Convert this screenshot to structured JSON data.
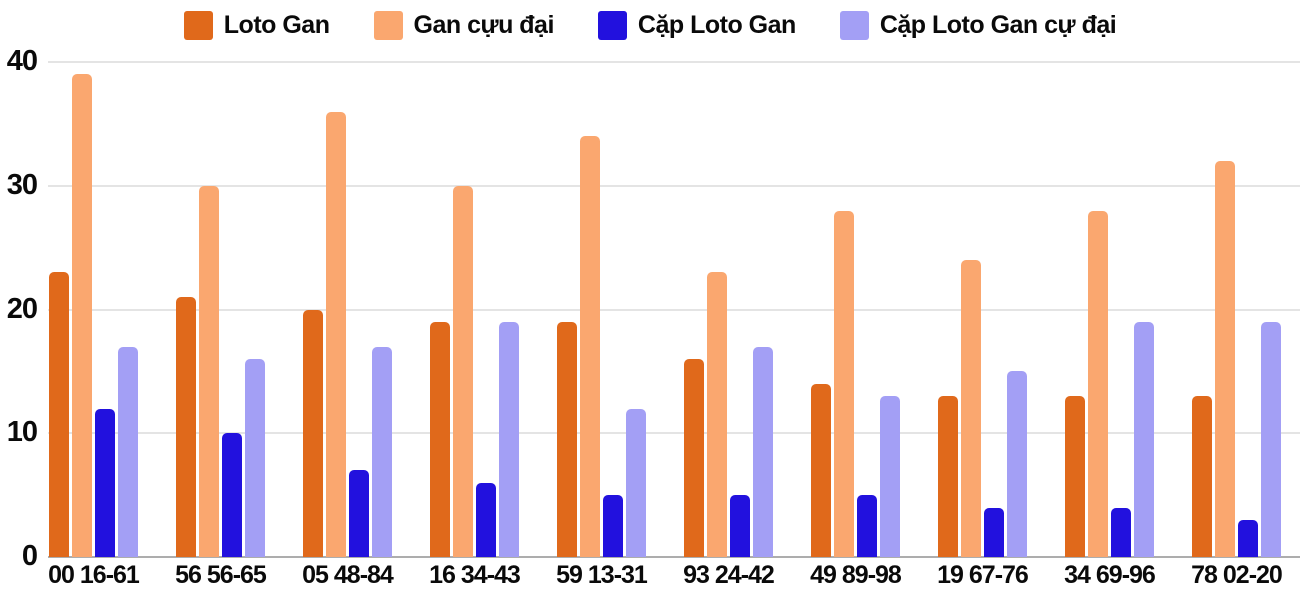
{
  "chart_data": {
    "type": "bar",
    "title": "",
    "xlabel": "",
    "ylabel": "",
    "ylim": [
      0,
      40
    ],
    "yticks": [
      0,
      10,
      20,
      30,
      40
    ],
    "grid": true,
    "legend_position": "top",
    "categories": [
      "00 16-61",
      "56 56-65",
      "05 48-84",
      "16 34-43",
      "59 13-31",
      "93 24-42",
      "49 89-98",
      "19 67-76",
      "34 69-96",
      "78 02-20"
    ],
    "series": [
      {
        "name": "Loto Gan",
        "color": "#E0691B",
        "values": [
          23,
          21,
          20,
          19,
          19,
          16,
          14,
          13,
          13,
          13
        ]
      },
      {
        "name": "Gan cựu đại",
        "color": "#FAA76F",
        "values": [
          39,
          30,
          36,
          30,
          34,
          23,
          28,
          24,
          28,
          32
        ]
      },
      {
        "name": "Cặp Loto Gan",
        "color": "#2211DE",
        "values": [
          12,
          10,
          7,
          6,
          5,
          5,
          5,
          4,
          4,
          3
        ]
      },
      {
        "name": "Cặp Loto Gan cự đại",
        "color": "#A39FF5",
        "values": [
          17,
          16,
          17,
          19,
          12,
          17,
          13,
          15,
          19,
          19
        ]
      }
    ]
  },
  "colors": {
    "gridline": "#e4e4e4",
    "baseline": "#adadad",
    "text": "#0a0a0a",
    "background": "#ffffff"
  }
}
